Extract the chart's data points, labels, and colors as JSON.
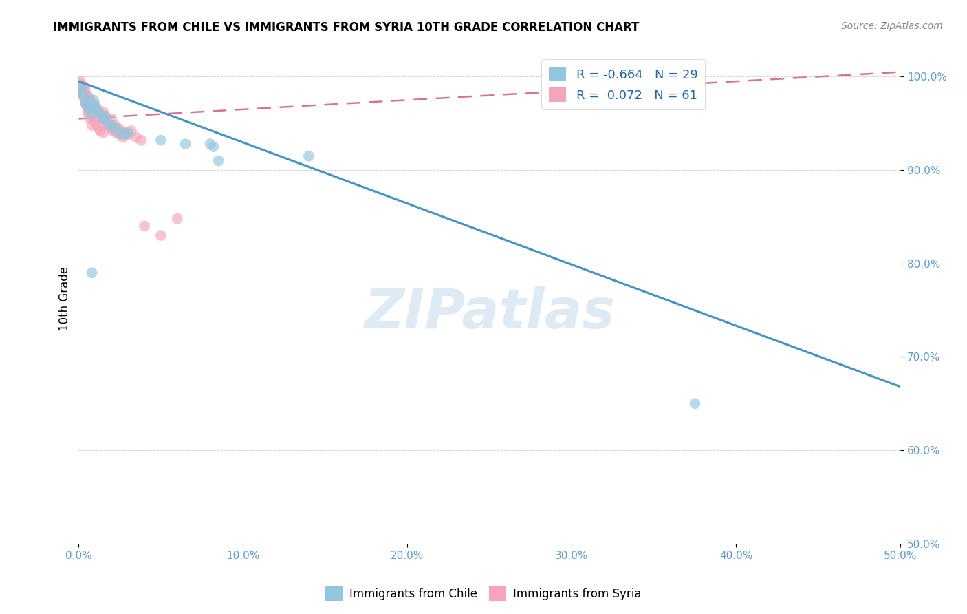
{
  "title": "IMMIGRANTS FROM CHILE VS IMMIGRANTS FROM SYRIA 10TH GRADE CORRELATION CHART",
  "source": "Source: ZipAtlas.com",
  "ylabel": "10th Grade",
  "xlim": [
    0.0,
    0.5
  ],
  "ylim": [
    0.5,
    1.025
  ],
  "xticks": [
    0.0,
    0.1,
    0.2,
    0.3,
    0.4,
    0.5
  ],
  "yticks": [
    0.5,
    0.6,
    0.7,
    0.8,
    0.9,
    1.0
  ],
  "xtick_labels": [
    "0.0%",
    "10.0%",
    "20.0%",
    "30.0%",
    "40.0%",
    "50.0%"
  ],
  "ytick_labels": [
    "50.0%",
    "60.0%",
    "70.0%",
    "80.0%",
    "90.0%",
    "100.0%"
  ],
  "watermark": "ZIPatlas",
  "chile_R": -0.664,
  "chile_N": 29,
  "syria_R": 0.072,
  "syria_N": 61,
  "chile_color": "#92c5de",
  "syria_color": "#f4a6b8",
  "chile_line_color": "#4393c3",
  "syria_line_color": "#d6748a",
  "legend_label_chile": "Immigrants from Chile",
  "legend_label_syria": "Immigrants from Syria",
  "chile_trend_x": [
    0.0,
    0.5
  ],
  "chile_trend_y": [
    0.995,
    0.668
  ],
  "syria_trend_x": [
    0.0,
    0.5
  ],
  "syria_trend_y": [
    0.955,
    1.005
  ],
  "chile_scatter_x": [
    0.001,
    0.002,
    0.003,
    0.004,
    0.005,
    0.006,
    0.006,
    0.007,
    0.008,
    0.009,
    0.01,
    0.011,
    0.013,
    0.015,
    0.016,
    0.018,
    0.02,
    0.022,
    0.025,
    0.028,
    0.05,
    0.065,
    0.08,
    0.082,
    0.14,
    0.085,
    0.03,
    0.375,
    0.008
  ],
  "chile_scatter_y": [
    0.99,
    0.985,
    0.98,
    0.972,
    0.975,
    0.97,
    0.968,
    0.965,
    0.96,
    0.975,
    0.97,
    0.965,
    0.96,
    0.955,
    0.958,
    0.95,
    0.948,
    0.945,
    0.94,
    0.938,
    0.932,
    0.928,
    0.928,
    0.925,
    0.915,
    0.91,
    0.94,
    0.65,
    0.79
  ],
  "syria_scatter_x": [
    0.001,
    0.001,
    0.002,
    0.002,
    0.003,
    0.003,
    0.003,
    0.004,
    0.004,
    0.004,
    0.005,
    0.005,
    0.005,
    0.006,
    0.006,
    0.006,
    0.007,
    0.007,
    0.008,
    0.008,
    0.009,
    0.009,
    0.01,
    0.01,
    0.011,
    0.011,
    0.012,
    0.012,
    0.013,
    0.013,
    0.014,
    0.015,
    0.015,
    0.016,
    0.017,
    0.018,
    0.019,
    0.02,
    0.021,
    0.022,
    0.023,
    0.024,
    0.025,
    0.026,
    0.027,
    0.028,
    0.03,
    0.032,
    0.035,
    0.038,
    0.001,
    0.002,
    0.003,
    0.004,
    0.005,
    0.006,
    0.007,
    0.008,
    0.04,
    0.05,
    0.06
  ],
  "syria_scatter_y": [
    0.992,
    0.988,
    0.985,
    0.982,
    0.99,
    0.98,
    0.978,
    0.985,
    0.975,
    0.972,
    0.98,
    0.97,
    0.968,
    0.978,
    0.965,
    0.962,
    0.975,
    0.96,
    0.97,
    0.958,
    0.965,
    0.955,
    0.968,
    0.952,
    0.96,
    0.948,
    0.965,
    0.945,
    0.958,
    0.942,
    0.955,
    0.962,
    0.94,
    0.958,
    0.952,
    0.948,
    0.945,
    0.955,
    0.942,
    0.948,
    0.94,
    0.945,
    0.938,
    0.942,
    0.935,
    0.94,
    0.938,
    0.942,
    0.935,
    0.932,
    0.995,
    0.99,
    0.985,
    0.975,
    0.968,
    0.96,
    0.955,
    0.948,
    0.84,
    0.83,
    0.848
  ]
}
